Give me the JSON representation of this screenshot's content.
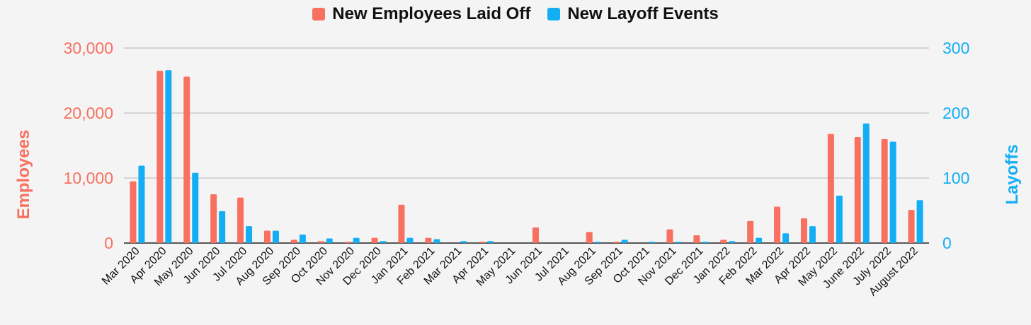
{
  "chart_data": {
    "type": "bar",
    "title": "",
    "categories": [
      "Mar 2020",
      "Apr 2020",
      "May 2020",
      "Jun 2020",
      "Jul 2020",
      "Aug 2020",
      "Sep 2020",
      "Oct 2020",
      "Nov 2020",
      "Dec 2020",
      "Jan 2021",
      "Feb 2021",
      "Mar 2021",
      "Apr 2021",
      "May 2021",
      "Jun 2021",
      "Jul 2021",
      "Aug 2021",
      "Sep 2021",
      "Oct 2021",
      "Nov 2021",
      "Dec 2021",
      "Jan 2022",
      "Feb 2022",
      "Mar 2022",
      "Apr 2022",
      "May 2022",
      "June 2022",
      "July 2022",
      "August 2022"
    ],
    "series": [
      {
        "name": "New Employees Laid Off",
        "axis": "left",
        "color": "#f87060",
        "values": [
          9500,
          26500,
          25600,
          7500,
          7000,
          1900,
          500,
          300,
          200,
          800,
          5900,
          800,
          0,
          200,
          0,
          2400,
          0,
          1700,
          200,
          0,
          2100,
          1200,
          500,
          3400,
          5600,
          3800,
          16800,
          16300,
          16000,
          5100
        ]
      },
      {
        "name": "New Layoff Events",
        "axis": "right",
        "color": "#14aef5",
        "values": [
          119,
          266,
          108,
          49,
          26,
          19,
          13,
          7,
          8,
          3,
          8,
          6,
          3,
          3,
          0,
          0,
          0,
          2,
          5,
          2,
          2,
          2,
          3,
          8,
          15,
          26,
          73,
          184,
          156,
          66
        ]
      }
    ],
    "ylabel": "Employees",
    "ylabel_right": "Layoffs",
    "ylim": [
      0,
      30000
    ],
    "ylim_right": [
      0,
      300
    ],
    "yticks_left": [
      "0",
      "10,000",
      "20,000",
      "30,000"
    ],
    "yticks_right": [
      "0",
      "100",
      "200",
      "300"
    ],
    "grid": true,
    "legend_position": "top-center"
  },
  "colors": {
    "employees": "#f87060",
    "layoffs": "#14aef5",
    "grid": "#b5b5b5",
    "background": "#f4f4f4"
  }
}
